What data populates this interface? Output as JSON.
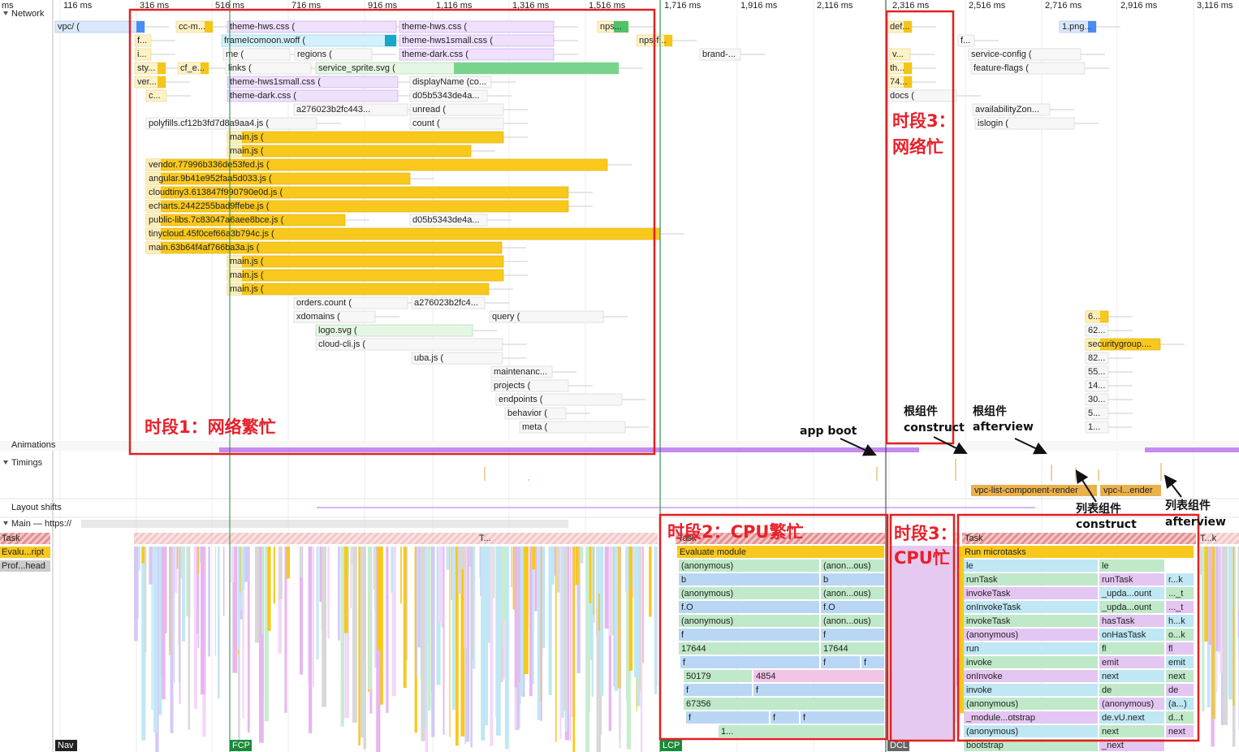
{
  "ruler": [
    "ms",
    "116 ms",
    "316 ms",
    "516 ms",
    "716 ms",
    "916 ms",
    "1,116 ms",
    "1,316 ms",
    "1,516 ms",
    "1,716 ms",
    "1,916 ms",
    "2,116 ms",
    "2,316 ms",
    "2,516 ms",
    "2,716 ms",
    "2,916 ms",
    "3,116 ms"
  ],
  "tracks": {
    "network": "Network",
    "animations": "Animations",
    "timings": "Timings",
    "layout_shifts": "Layout shifts",
    "main": "Main — https://"
  },
  "network_requests": [
    "vpc/ (",
    "cc-m...",
    "theme-hws.css (",
    "theme-hws.css (",
    "nps...",
    "def...",
    "1.png...",
    "f...",
    "frameIcomoon.woff (",
    "theme-hws1small.css (",
    "nps-f...",
    "f...",
    "i...",
    "me (",
    "regions (",
    "theme-dark.css (",
    "brand-...",
    "v...",
    "service-config (",
    "sty...",
    "cf_e...",
    "links (",
    "service_sprite.svg (",
    "th...",
    "feature-flags (",
    "ver...",
    "theme-hws1small.css (",
    "displayName (co...",
    "74...",
    "c...",
    "theme-dark.css (",
    "d05b5343de4a...",
    "docs (",
    "a276023b2fc443...",
    "unread (",
    "availabilityZon...",
    "polyfills.cf12b3fd7d8a9aa4.js (",
    "count (",
    "islogin (",
    "main.js (",
    "main.js (",
    "vendor.77996b336de53fed.js (",
    "angular.9b41e952faa5d033.js (",
    "cloudtiny3.613847f990790e0d.js (",
    "echarts.2442255bad9ffebe.js (",
    "public-libs.7c83047a6aee8bce.js (",
    "d05b5343de4a...",
    "tinycloud.45f0cef66a3b794c.js (",
    "main.63b64f4af766ba3a.js (",
    "main.js (",
    "main.js (",
    "main.js (",
    "orders.count (",
    "a276023b2fc4...",
    "xdomains (",
    "query (",
    "logo.svg (",
    "cloud-cli.js (",
    "uba.js (",
    "maintenanc...",
    "projects (",
    "endpoints (",
    "behavior (",
    "meta (",
    "securitygroup....",
    "6...",
    "62...",
    "82...",
    "55...",
    "14...",
    "30...",
    "5...",
    "1..."
  ],
  "timings": [
    "vpc-list-component-render",
    "vpc-l...ender"
  ],
  "main_legend": [
    "Task",
    "Evalu...ript",
    "Prof...head"
  ],
  "task_labels": [
    "Task",
    "Task",
    "T...k",
    "T..."
  ],
  "cpu2_rows": [
    [
      "Evaluate module"
    ],
    [
      "(anonymous)",
      "(anon...ous)"
    ],
    [
      "b",
      "b"
    ],
    [
      "(anonymous)",
      "(anon...ous)"
    ],
    [
      "f.O",
      "f.O"
    ],
    [
      "(anonymous)",
      "(anon...ous)"
    ],
    [
      "f",
      "f"
    ],
    [
      "17644",
      "17644"
    ],
    [
      "f",
      "f",
      "f"
    ],
    [
      "50179",
      "4854"
    ],
    [
      "f",
      "f"
    ],
    [
      "67356"
    ],
    [
      "f",
      "f",
      "f"
    ],
    [
      "1..."
    ]
  ],
  "cpu3_rows": [
    [
      "Run microtasks"
    ],
    [
      "le",
      "le"
    ],
    [
      "runTask",
      "runTask",
      "r...k"
    ],
    [
      "invokeTask",
      "_upda...ount",
      "..._t"
    ],
    [
      "onInvokeTask",
      "_upda...ount",
      "..._t"
    ],
    [
      "invokeTask",
      "hasTask",
      "h...k"
    ],
    [
      "(anonymous)",
      "onHasTask",
      "o...k"
    ],
    [
      "run",
      "fl",
      "fl"
    ],
    [
      "invoke",
      "emit",
      "emit"
    ],
    [
      "onInvoke",
      "next",
      "next"
    ],
    [
      "invoke",
      "de",
      "de"
    ],
    [
      "(anonymous)",
      "(anonymous)",
      "(a...)"
    ],
    [
      "_module...otstrap",
      "de.vU.next",
      "d...t"
    ],
    [
      "(anonymous)",
      "next",
      "next"
    ],
    [
      "bootstrap",
      "_next"
    ]
  ],
  "markers": [
    "Nav",
    "FCP",
    "LCP",
    "DCL"
  ],
  "annotations": {
    "phase1": "时段1：网络繁忙",
    "phase2": "时段2：CPU繁忙",
    "phase3_net": [
      "时段3：",
      "网络忙"
    ],
    "phase3_cpu": [
      "时段3：",
      "CPU忙"
    ],
    "app_boot": "app boot",
    "root_construct": [
      "根组件",
      "construct"
    ],
    "root_afterview": [
      "根组件",
      "afterview"
    ],
    "list_construct": [
      "列表组件",
      "construct"
    ],
    "list_afterview": [
      "列表组件",
      "afterview"
    ]
  }
}
